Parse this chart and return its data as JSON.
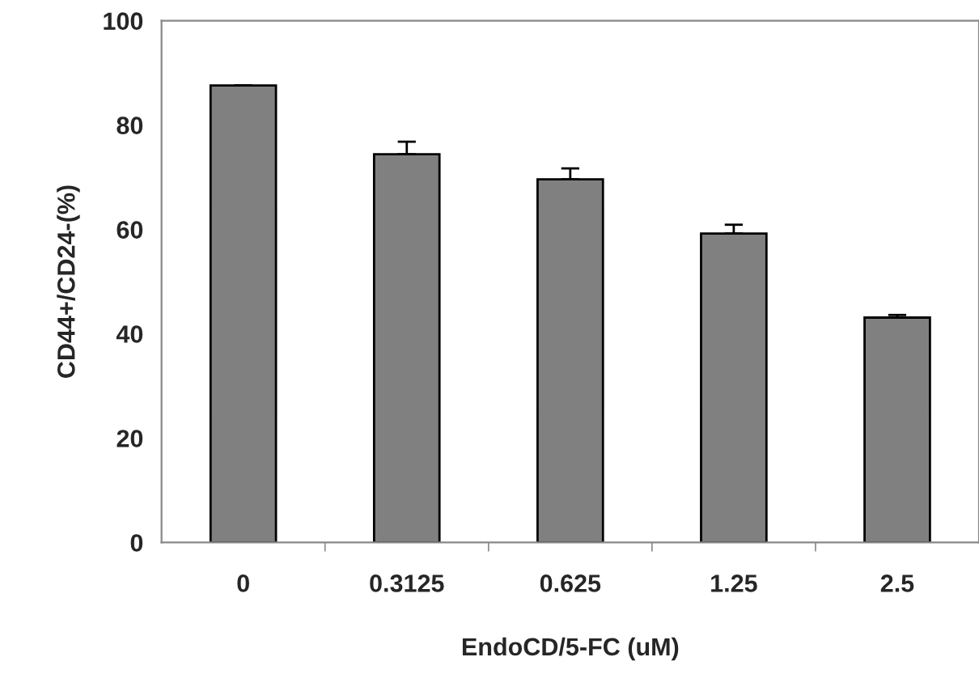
{
  "chart_data": {
    "type": "bar",
    "xlabel": "EndoCD/5-FC (uM)",
    "ylabel": "CD44+/CD24-(%)",
    "categories": [
      "0",
      "0.3125",
      "0.625",
      "1.25",
      "2.5"
    ],
    "values": [
      87.6,
      74.4,
      69.6,
      59.2,
      43.1
    ],
    "errors": [
      null,
      2.4,
      2.1,
      1.7,
      0.5
    ],
    "color": "#808080",
    "ylim": [
      0,
      100
    ],
    "yticks": [
      0,
      20,
      40,
      60,
      80,
      100
    ],
    "grid": false
  }
}
